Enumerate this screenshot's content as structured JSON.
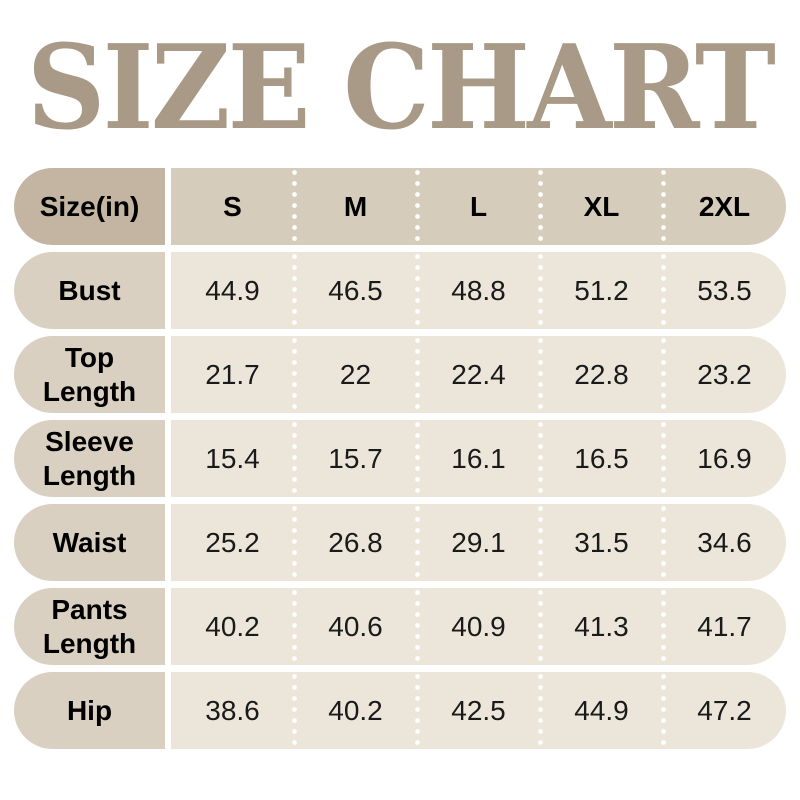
{
  "title": "SIZE CHART",
  "colors": {
    "title": "#a89a86",
    "header_label_bg": "#c3b5a1",
    "header_values_bg": "#d6ccbb",
    "row_label_bg": "#d9d0c1",
    "row_values_bg": "#ece5d9",
    "divider": "#ffffff",
    "label_text": "#000000",
    "value_text": "#1a1a1a"
  },
  "header": {
    "size_label": "Size(in)",
    "columns": [
      "S",
      "M",
      "L",
      "XL",
      "2XL"
    ]
  },
  "chart_data": {
    "type": "table",
    "title": "SIZE CHART",
    "unit": "in",
    "columns": [
      "S",
      "M",
      "L",
      "XL",
      "2XL"
    ],
    "rows": [
      {
        "measure": "Bust",
        "values": [
          44.9,
          46.5,
          48.8,
          51.2,
          53.5
        ]
      },
      {
        "measure": "Top Length",
        "values": [
          21.7,
          22,
          22.4,
          22.8,
          23.2
        ]
      },
      {
        "measure": "Sleeve Length",
        "values": [
          15.4,
          15.7,
          16.1,
          16.5,
          16.9
        ]
      },
      {
        "measure": "Waist",
        "values": [
          25.2,
          26.8,
          29.1,
          31.5,
          34.6
        ]
      },
      {
        "measure": "Pants Length",
        "values": [
          40.2,
          40.6,
          40.9,
          41.3,
          41.7
        ]
      },
      {
        "measure": "Hip",
        "values": [
          38.6,
          40.2,
          42.5,
          44.9,
          47.2
        ]
      }
    ]
  }
}
